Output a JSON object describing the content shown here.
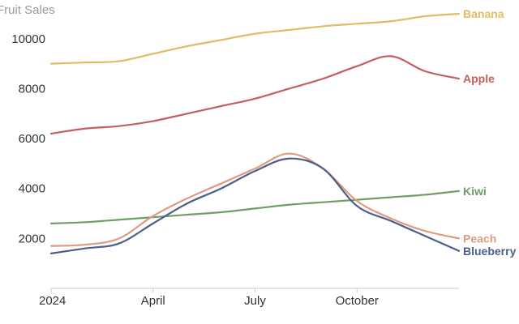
{
  "chart_data": {
    "type": "line",
    "title": "Fruit Sales",
    "xlabel": "",
    "ylabel": "",
    "x": [
      "2024-01",
      "2024-02",
      "2024-03",
      "2024-04",
      "2024-05",
      "2024-06",
      "2024-07",
      "2024-08",
      "2024-09",
      "2024-10",
      "2024-11",
      "2024-12",
      "2025-01"
    ],
    "x_ticks": [
      {
        "x": "2024-01",
        "label": "2024"
      },
      {
        "x": "2024-04",
        "label": "April"
      },
      {
        "x": "2024-07",
        "label": "July"
      },
      {
        "x": "2024-10",
        "label": "October"
      }
    ],
    "y_ticks": [
      2000,
      4000,
      6000,
      8000,
      10000
    ],
    "ylim": [
      0,
      11000
    ],
    "grid": false,
    "legend": "end-of-line labels",
    "series": [
      {
        "name": "Banana",
        "color": "#e0bd62",
        "values": [
          9000,
          9050,
          9100,
          9400,
          9700,
          9950,
          10200,
          10350,
          10500,
          10600,
          10700,
          10900,
          11000
        ]
      },
      {
        "name": "Apple",
        "color": "#c65e5e",
        "values": [
          6200,
          6400,
          6500,
          6700,
          7000,
          7300,
          7600,
          8000,
          8400,
          8900,
          9300,
          8700,
          8400
        ]
      },
      {
        "name": "Kiwi",
        "color": "#6e9e62",
        "values": [
          2600,
          2650,
          2750,
          2850,
          2950,
          3050,
          3200,
          3350,
          3450,
          3550,
          3650,
          3750,
          3900
        ]
      },
      {
        "name": "Peach",
        "color": "#e09a82",
        "values": [
          1700,
          1750,
          2000,
          2900,
          3600,
          4200,
          4800,
          5400,
          4800,
          3500,
          2800,
          2300,
          2000
        ]
      },
      {
        "name": "Blueberry",
        "color": "#4a5f8a",
        "values": [
          1400,
          1600,
          1800,
          2600,
          3400,
          4000,
          4700,
          5200,
          4800,
          3300,
          2700,
          2100,
          1500
        ]
      }
    ]
  }
}
